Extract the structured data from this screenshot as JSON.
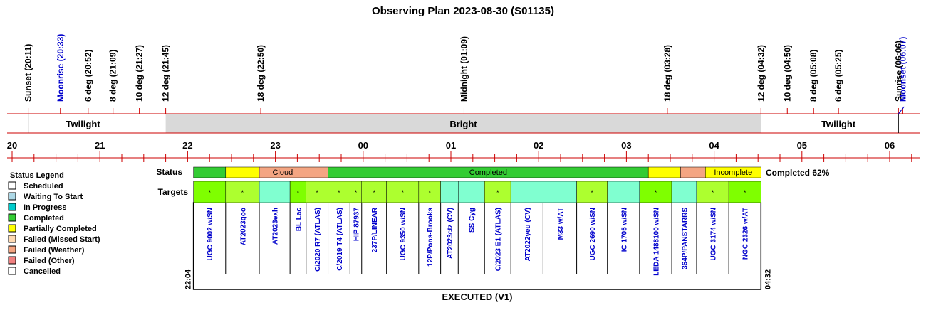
{
  "title": "Observing Plan 2023-08-30 (S01135)",
  "colors": {
    "red": "#cc0000",
    "twilight": "#ffffff",
    "bright": "#d9d9d9",
    "completed": "#33cc33",
    "partial": "#ffff00",
    "failed_weather": "#f4a582",
    "waiting": "#80ffd0",
    "target_done": "#7fff00",
    "target_partial": "#adff2f",
    "text_blue": "#0000cc"
  },
  "events": [
    {
      "label": "Sunset (20:11)",
      "time": "20:11",
      "color": "#000000"
    },
    {
      "label": "Moonrise (20:33)",
      "time": "20:33",
      "color": "#0000cc"
    },
    {
      "label": "6 deg (20:52)",
      "time": "20:52",
      "color": "#000000"
    },
    {
      "label": "8 deg (21:09)",
      "time": "21:09",
      "color": "#000000"
    },
    {
      "label": "10 deg (21:27)",
      "time": "21:27",
      "color": "#000000"
    },
    {
      "label": "12 deg (21:45)",
      "time": "21:45",
      "color": "#000000"
    },
    {
      "label": "18 deg (22:50)",
      "time": "22:50",
      "color": "#000000"
    },
    {
      "label": "Midnight (01:09)",
      "time": "01:09",
      "color": "#000000"
    },
    {
      "label": "18 deg (03:28)",
      "time": "03:28",
      "color": "#000000"
    },
    {
      "label": "12 deg (04:32)",
      "time": "04:32",
      "color": "#000000"
    },
    {
      "label": "10 deg (04:50)",
      "time": "04:50",
      "color": "#000000"
    },
    {
      "label": "8 deg (05:08)",
      "time": "05:08",
      "color": "#000000"
    },
    {
      "label": "6 deg (05:25)",
      "time": "05:25",
      "color": "#000000"
    },
    {
      "label": "Sunrise (06:06)",
      "time": "06:06",
      "color": "#000000"
    },
    {
      "label": "Moonset (06:07)",
      "time": "06:07",
      "color": "#0000cc"
    }
  ],
  "bands": [
    {
      "label": "Twilight",
      "start": "19:52",
      "end": "21:45",
      "color": "#ffffff"
    },
    {
      "label": "Bright",
      "start": "21:45",
      "end": "04:32",
      "color": "#d9d9d9"
    },
    {
      "label": "Twilight",
      "start": "04:32",
      "end": "06:18",
      "color": "#ffffff"
    }
  ],
  "hour_labels": [
    "20",
    "21",
    "22",
    "23",
    "00",
    "01",
    "02",
    "03",
    "04",
    "05",
    "06"
  ],
  "status": {
    "row_label": "Status",
    "summary": "Completed 62%",
    "segments": [
      {
        "start": "22:04",
        "end": "22:26",
        "text": "",
        "color": "#33cc33"
      },
      {
        "start": "22:26",
        "end": "22:49",
        "text": "",
        "color": "#ffff00"
      },
      {
        "start": "22:49",
        "end": "23:21",
        "text": "Cloud",
        "color": "#f4a582"
      },
      {
        "start": "23:21",
        "end": "23:36",
        "text": "",
        "color": "#f4a582"
      },
      {
        "start": "23:36",
        "end": "03:15",
        "text": "Completed",
        "color": "#33cc33"
      },
      {
        "start": "03:15",
        "end": "03:37",
        "text": "",
        "color": "#ffff00"
      },
      {
        "start": "03:37",
        "end": "03:54",
        "text": "",
        "color": "#f4a582"
      },
      {
        "start": "03:54",
        "end": "04:32",
        "text": "Incomplete",
        "color": "#ffff00"
      }
    ]
  },
  "targets": {
    "row_label": "Targets",
    "start_label": "22:04",
    "end_label": "04:32",
    "footer": "EXECUTED (V1)",
    "items": [
      {
        "name": "UGC 9002 w/SN",
        "start": "22:04",
        "end": "22:26",
        "color": "#7fff00",
        "mark": "*"
      },
      {
        "name": "AT2023qoo",
        "start": "22:26",
        "end": "22:49",
        "color": "#adff2f",
        "mark": "*"
      },
      {
        "name": "AT2023exh",
        "start": "22:49",
        "end": "23:10",
        "color": "#80ffd0",
        "mark": ""
      },
      {
        "name": "BL Lac",
        "start": "23:10",
        "end": "23:21",
        "color": "#7fff00",
        "mark": "*"
      },
      {
        "name": "C/2020 R7 (ATLAS)",
        "start": "23:21",
        "end": "23:36",
        "color": "#adff2f",
        "mark": "*"
      },
      {
        "name": "C/2019 T4 (ATLAS)",
        "start": "23:36",
        "end": "23:51",
        "color": "#adff2f",
        "mark": "*"
      },
      {
        "name": "HIP 87937",
        "start": "23:51",
        "end": "23:59",
        "color": "#adff2f",
        "mark": "*"
      },
      {
        "name": "237P/LINEAR",
        "start": "23:59",
        "end": "00:16",
        "color": "#adff2f",
        "mark": "*"
      },
      {
        "name": "UGC 9350 w/SN",
        "start": "00:16",
        "end": "00:38",
        "color": "#adff2f",
        "mark": "*"
      },
      {
        "name": "12P/Pons-Brooks",
        "start": "00:38",
        "end": "00:53",
        "color": "#adff2f",
        "mark": "*"
      },
      {
        "name": "AT2023ctz (CV)",
        "start": "00:53",
        "end": "01:05",
        "color": "#80ffd0",
        "mark": ""
      },
      {
        "name": "SS Cyg",
        "start": "01:05",
        "end": "01:23",
        "color": "#80ffd0",
        "mark": ""
      },
      {
        "name": "C/2023 E1 (ATLAS)",
        "start": "01:23",
        "end": "01:41",
        "color": "#adff2f",
        "mark": "*"
      },
      {
        "name": "AT2022yeu (CV)",
        "start": "01:41",
        "end": "02:03",
        "color": "#80ffd0",
        "mark": ""
      },
      {
        "name": "M33 w/AT",
        "start": "02:03",
        "end": "02:26",
        "color": "#80ffd0",
        "mark": ""
      },
      {
        "name": "UGC 2690 w/SN",
        "start": "02:26",
        "end": "02:47",
        "color": "#adff2f",
        "mark": "*"
      },
      {
        "name": "IC 1705 w/SN",
        "start": "02:47",
        "end": "03:09",
        "color": "#80ffd0",
        "mark": ""
      },
      {
        "name": "LEDA 1488100 w/SN",
        "start": "03:09",
        "end": "03:31",
        "color": "#7fff00",
        "mark": "*"
      },
      {
        "name": "364P/PANSTARRS",
        "start": "03:31",
        "end": "03:48",
        "color": "#80ffd0",
        "mark": ""
      },
      {
        "name": "UGC 3174 w/SN",
        "start": "03:48",
        "end": "04:10",
        "color": "#adff2f",
        "mark": "*"
      },
      {
        "name": "NGC 2326 w/AT",
        "start": "04:10",
        "end": "04:32",
        "color": "#7fff00",
        "mark": "*"
      }
    ]
  },
  "legend": {
    "title": "Status Legend",
    "items": [
      {
        "label": "Scheduled",
        "color": "#ffffff"
      },
      {
        "label": "Waiting To Start",
        "color": "#add8e6"
      },
      {
        "label": "In Progress",
        "color": "#00cccc"
      },
      {
        "label": "Completed",
        "color": "#33cc33"
      },
      {
        "label": "Partially Completed",
        "color": "#ffff00"
      },
      {
        "label": "Failed (Missed Start)",
        "color": "#ffdab3"
      },
      {
        "label": "Failed (Weather)",
        "color": "#f4a582"
      },
      {
        "label": "Failed (Other)",
        "color": "#f08080"
      },
      {
        "label": "Cancelled",
        "color": "#ffffff"
      }
    ]
  },
  "chart_data": {
    "type": "table",
    "title": "Observing Plan 2023-08-30 (S01135)",
    "x_axis": {
      "unit": "hour",
      "range": [
        "19:52",
        "06:18"
      ],
      "tick_labels": [
        "20",
        "21",
        "22",
        "23",
        "00",
        "01",
        "02",
        "03",
        "04",
        "05",
        "06"
      ]
    },
    "observation_window": {
      "start": "22:04",
      "end": "04:32"
    },
    "completed_percent": 62,
    "target_count": 21
  }
}
